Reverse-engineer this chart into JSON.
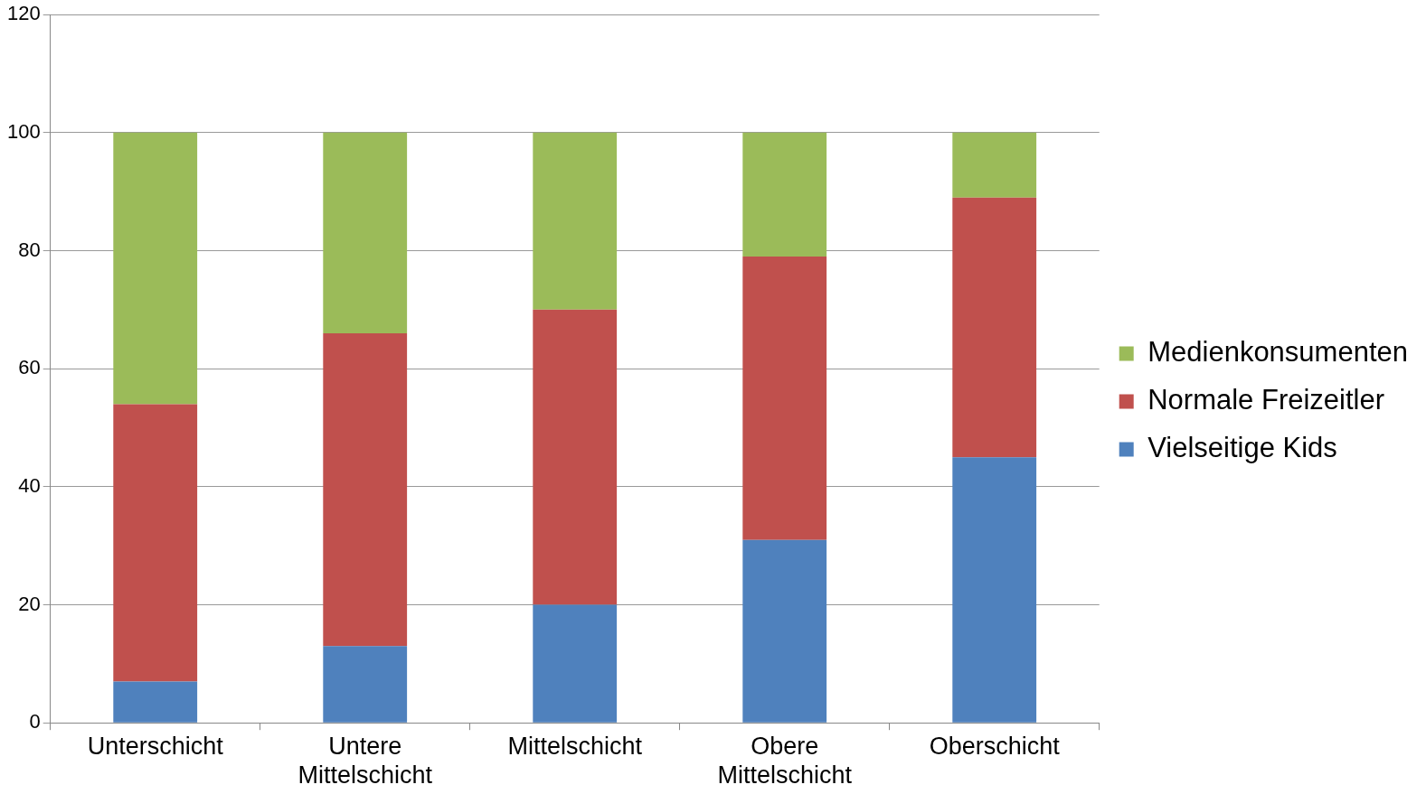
{
  "chart_data": {
    "type": "bar",
    "stacked": true,
    "categories": [
      "Unterschicht",
      "Untere Mittelschicht",
      "Mittelschicht",
      "Obere Mittelschicht",
      "Oberschicht"
    ],
    "series": [
      {
        "name": "Vielseitige Kids",
        "color": "#4f81bd",
        "values": [
          7,
          13,
          20,
          31,
          45
        ]
      },
      {
        "name": "Normale Freizeitler",
        "color": "#c0504d",
        "values": [
          47,
          53,
          50,
          48,
          44
        ]
      },
      {
        "name": "Medienkonsumenten",
        "color": "#9bbb59",
        "values": [
          46,
          34,
          30,
          21,
          11
        ]
      }
    ],
    "ylim": [
      0,
      120
    ],
    "yticks": [
      0,
      20,
      40,
      60,
      80,
      100,
      120
    ],
    "grid": "y",
    "legend": "right"
  }
}
